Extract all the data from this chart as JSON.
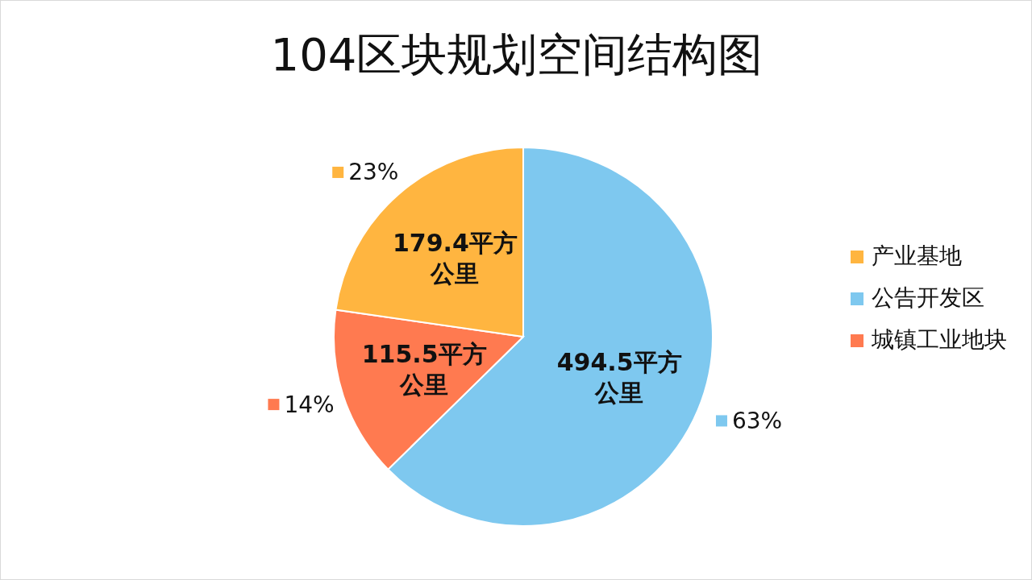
{
  "chart_data": {
    "type": "pie",
    "title": "104区块规划空间结构图",
    "categories": [
      "公告开发区",
      "城镇工业地块",
      "产业基地"
    ],
    "values": [
      494.5,
      115.5,
      179.4
    ],
    "colors": [
      "#7ec8ef",
      "#ff7a50",
      "#ffb540"
    ],
    "value_labels": [
      "494.5平方公里",
      "115.5平方公里",
      "179.4平方公里"
    ],
    "annotations": [
      "63%",
      "14%",
      "23%"
    ],
    "legend": "right"
  }
}
